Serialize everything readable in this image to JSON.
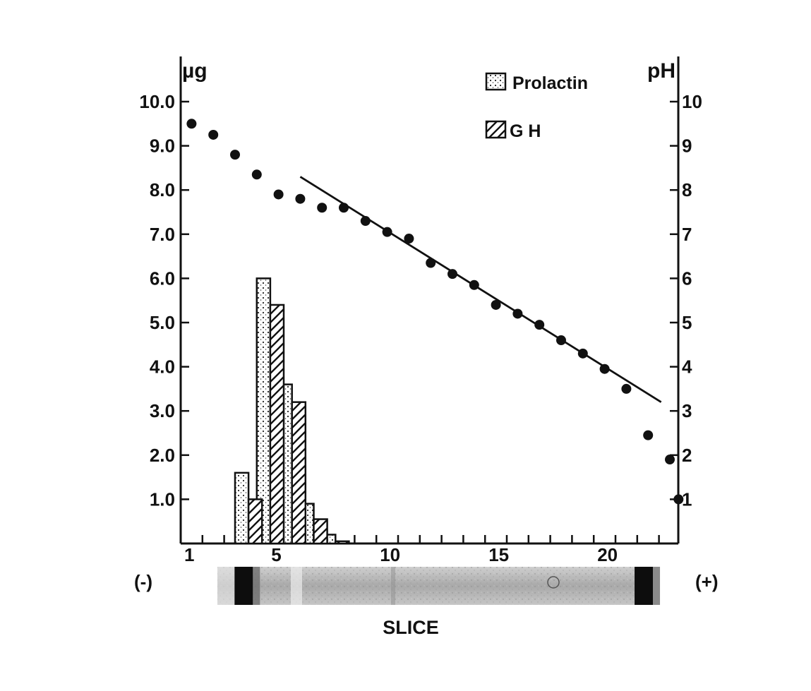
{
  "chart_data": {
    "type": "bar",
    "left_axis": {
      "label": "µg",
      "range": [
        0,
        11
      ],
      "ticks": [
        1.0,
        2.0,
        3.0,
        4.0,
        5.0,
        6.0,
        7.0,
        8.0,
        9.0,
        10.0
      ],
      "tick_labels": [
        "1.0",
        "2.0",
        "3.0",
        "4.0",
        "5.0",
        "6.0",
        "7.0",
        "8.0",
        "9.0",
        "10.0"
      ]
    },
    "right_axis": {
      "label": "pH",
      "range": [
        0,
        11
      ],
      "ticks": [
        1,
        2,
        3,
        4,
        5,
        6,
        7,
        8,
        9,
        10
      ],
      "tick_labels": [
        "1",
        "2",
        "3",
        "4",
        "5",
        "6",
        "7",
        "8",
        "9",
        "10"
      ]
    },
    "x_axis": {
      "label": "SLICE",
      "range": [
        1,
        23
      ],
      "ticks": [
        1,
        2,
        3,
        4,
        5,
        6,
        7,
        8,
        9,
        10,
        11,
        12,
        13,
        14,
        15,
        16,
        17,
        18,
        19,
        20,
        21,
        22,
        23
      ],
      "tick_labels": [
        {
          "x": 1,
          "label": "1"
        },
        {
          "x": 5,
          "label": "5"
        },
        {
          "x": 10,
          "label": "10"
        },
        {
          "x": 15,
          "label": "15"
        },
        {
          "x": 20,
          "label": "20"
        }
      ]
    },
    "series": [
      {
        "name": "Prolactin",
        "kind": "bar",
        "pattern": "dotted",
        "axis": "left",
        "x": [
          3,
          4,
          5,
          6,
          7
        ],
        "values": [
          1.6,
          6.0,
          3.6,
          0.9,
          0.2
        ]
      },
      {
        "name": "G H",
        "kind": "bar",
        "pattern": "hatched",
        "axis": "left",
        "x": [
          3,
          4,
          5,
          6,
          7
        ],
        "values": [
          1.0,
          5.4,
          3.2,
          0.55,
          0.05
        ]
      },
      {
        "kind": "scatter",
        "axis": "right",
        "x": [
          1,
          2,
          3,
          4,
          5,
          6,
          7,
          8,
          9,
          10,
          11,
          12,
          13,
          14,
          15,
          16,
          17,
          18,
          19,
          20,
          21,
          22,
          23,
          23.4
        ],
        "values": [
          9.5,
          9.25,
          8.8,
          8.35,
          7.9,
          7.8,
          7.6,
          7.6,
          7.3,
          7.05,
          6.9,
          6.35,
          6.1,
          5.85,
          5.4,
          5.2,
          4.95,
          4.6,
          4.3,
          3.95,
          3.5,
          2.45,
          1.9,
          1.0
        ]
      },
      {
        "kind": "line",
        "axis": "right",
        "x": [
          6,
          22.6
        ],
        "values": [
          8.3,
          3.2
        ]
      }
    ],
    "legend": {
      "placement": "top-right",
      "entries": [
        "Prolactin",
        "G H"
      ]
    },
    "annotations": {
      "left_end": "(-)",
      "right_end": "(+)"
    },
    "gel_strip": {
      "dark_bands_at_slice": [
        3.4,
        21.8
      ]
    },
    "grid": false
  }
}
